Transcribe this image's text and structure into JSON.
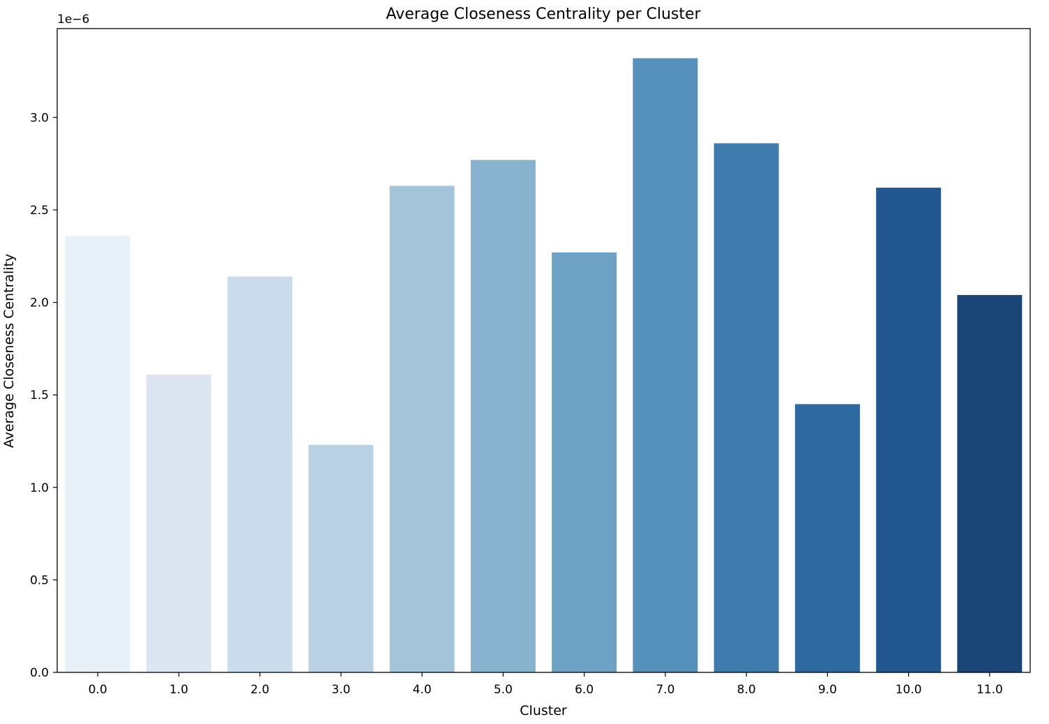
{
  "chart_data": {
    "type": "bar",
    "title": "Average Closeness Centrality per Cluster",
    "xlabel": "Cluster",
    "ylabel": "Average Closeness Centrality",
    "y_offset_label": "1e−6",
    "categories": [
      "0.0",
      "1.0",
      "2.0",
      "3.0",
      "4.0",
      "5.0",
      "6.0",
      "7.0",
      "8.0",
      "9.0",
      "10.0",
      "11.0"
    ],
    "values": [
      2.36,
      1.61,
      2.14,
      1.23,
      2.63,
      2.77,
      2.27,
      3.32,
      2.86,
      1.45,
      2.62,
      2.04
    ],
    "value_scale": "1e-6",
    "ylim": [
      0,
      3.48
    ],
    "yticks": [
      0.0,
      0.5,
      1.0,
      1.5,
      2.0,
      2.5,
      3.0
    ],
    "ytick_labels": [
      "0.0",
      "0.5",
      "1.0",
      "1.5",
      "2.0",
      "2.5",
      "3.0"
    ],
    "colors": [
      "#e8f0f8",
      "#dbe6f2",
      "#cbdcec",
      "#b9d1e3",
      "#a3c4d9",
      "#88b3cf",
      "#6ea2c4",
      "#5591ba",
      "#3f7cad",
      "#2e6aa0",
      "#22578f",
      "#1a4677"
    ],
    "grid": false,
    "legend": "none"
  }
}
